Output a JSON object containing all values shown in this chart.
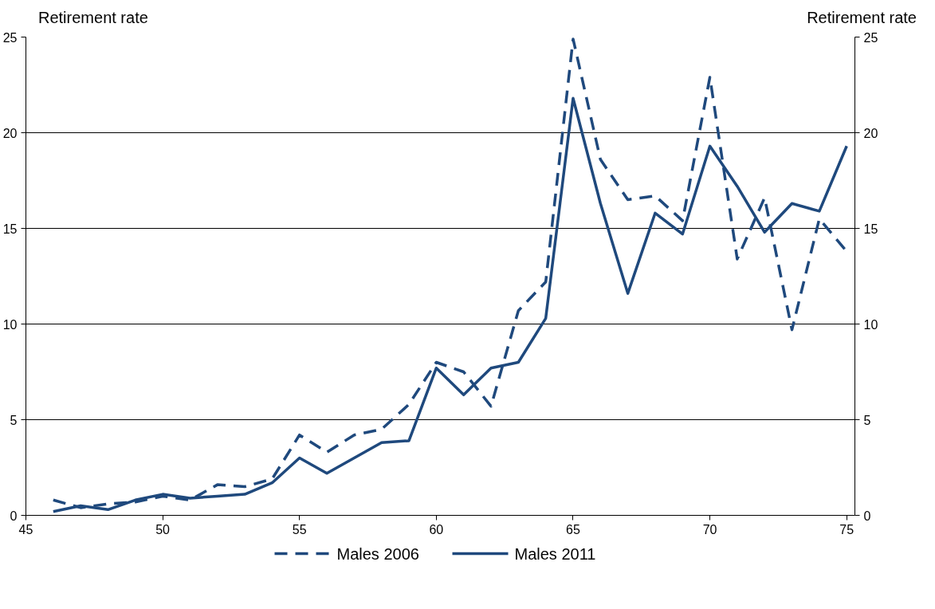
{
  "chart_data": {
    "type": "line",
    "ylabel": "Retirement rate",
    "y2label": "Retirement rate",
    "x": [
      46,
      47,
      48,
      49,
      50,
      51,
      52,
      53,
      54,
      55,
      56,
      57,
      58,
      59,
      60,
      61,
      62,
      63,
      64,
      65,
      66,
      67,
      68,
      69,
      70,
      71,
      72,
      73,
      74,
      75
    ],
    "series": [
      {
        "name": "Males 2006",
        "color": "#1f497d",
        "line_style": "dashed",
        "values": [
          0.8,
          0.4,
          0.6,
          0.7,
          1.0,
          0.8,
          1.6,
          1.5,
          1.9,
          4.2,
          3.3,
          4.2,
          4.5,
          5.8,
          8.0,
          7.5,
          5.7,
          10.7,
          12.2,
          24.9,
          18.6,
          16.5,
          16.7,
          15.4,
          22.9,
          13.4,
          16.6,
          9.7,
          15.5,
          13.8
        ]
      },
      {
        "name": "Males 2011",
        "color": "#1f497d",
        "line_style": "solid",
        "values": [
          0.2,
          0.5,
          0.3,
          0.8,
          1.1,
          0.9,
          1.0,
          1.1,
          1.7,
          3.0,
          2.2,
          3.0,
          3.8,
          3.9,
          7.7,
          6.3,
          7.7,
          8.0,
          10.3,
          21.8,
          16.3,
          11.6,
          15.8,
          14.7,
          19.3,
          17.2,
          14.8,
          16.3,
          15.9,
          19.3
        ]
      }
    ],
    "xlim": [
      45,
      75.3
    ],
    "xticks": [
      45,
      50,
      55,
      60,
      65,
      70,
      75
    ],
    "ylim": [
      0,
      25
    ],
    "yticks": [
      0,
      5,
      10,
      15,
      20,
      25
    ],
    "y2lim": [
      0,
      25
    ],
    "y2ticks": [
      0,
      5,
      10,
      15,
      20,
      25
    ],
    "grid": "y",
    "legend": "bottom"
  }
}
